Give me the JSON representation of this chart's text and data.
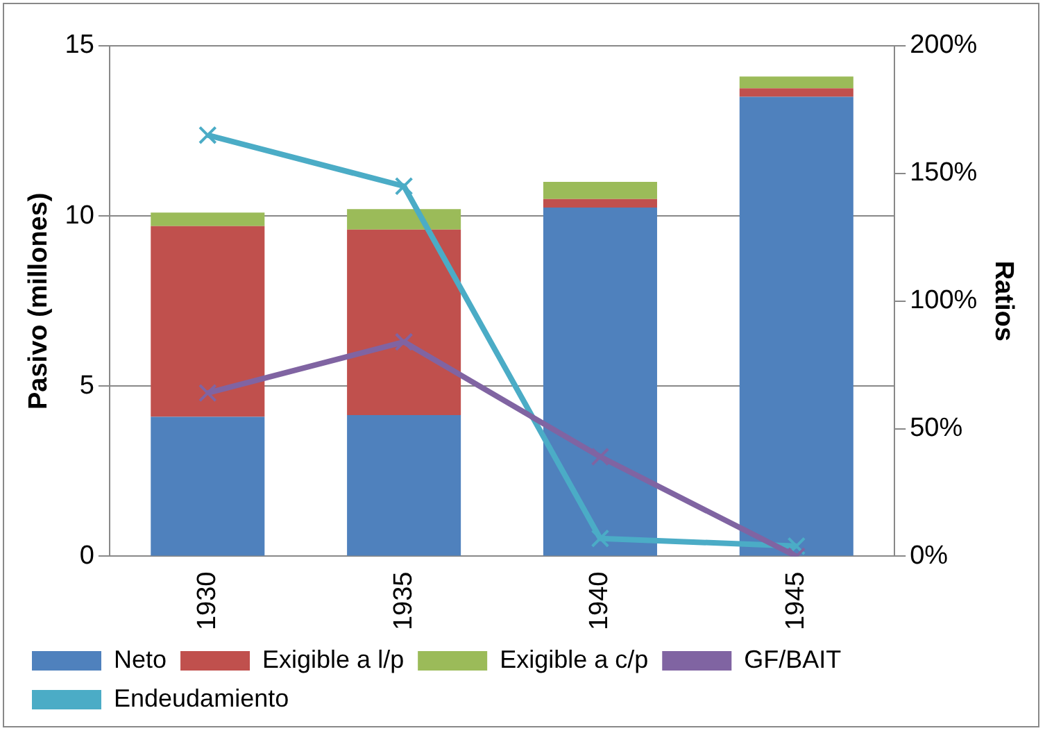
{
  "chart_data": {
    "type": "bar",
    "stacked": true,
    "categories": [
      "1930",
      "1935",
      "1940",
      "1945"
    ],
    "ylabel": "Pasivo (millones)",
    "y2label": "Ratios",
    "ylim": [
      0,
      15
    ],
    "yticks": [
      0,
      5,
      10,
      15
    ],
    "y2lim": [
      0,
      200
    ],
    "y2ticks": [
      {
        "value": 0,
        "label": "0%"
      },
      {
        "value": 50,
        "label": "50%"
      },
      {
        "value": 100,
        "label": "100%"
      },
      {
        "value": 150,
        "label": "150%"
      },
      {
        "value": 200,
        "label": "200%"
      }
    ],
    "grid": "y",
    "legend": "bottom",
    "series": [
      {
        "name": "Neto",
        "color": "#4f81bd",
        "values": [
          4.1,
          4.15,
          10.25,
          13.5
        ]
      },
      {
        "name": "Exigible a l/p",
        "color": "#c0504d",
        "values": [
          5.6,
          5.45,
          0.25,
          0.25
        ]
      },
      {
        "name": "Exigible a c/p",
        "color": "#9bbb59",
        "values": [
          0.4,
          0.6,
          0.5,
          0.35
        ]
      },
      {
        "name": "GF/BAIT",
        "type": "line",
        "axis": "y2",
        "marker": "cross",
        "color": "#8064a2",
        "values": [
          64,
          84,
          39,
          0
        ]
      },
      {
        "name": "Endeudamiento",
        "type": "line",
        "axis": "y2",
        "marker": "cross",
        "color": "#4bacc6",
        "values": [
          165,
          145,
          7,
          4
        ]
      }
    ]
  }
}
